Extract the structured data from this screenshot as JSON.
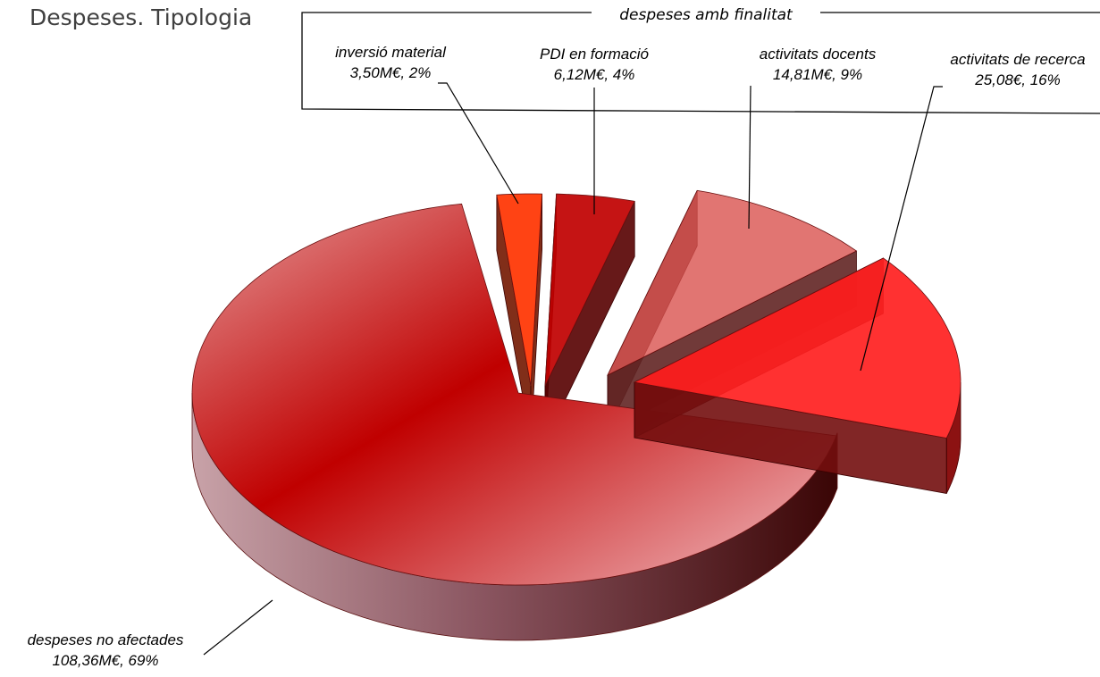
{
  "chart_data": {
    "type": "pie",
    "title": "Despeses. Tipologia",
    "group_label": "despeses amb finalitat",
    "slices": [
      {
        "name": "despeses no afectades",
        "value": 108.36,
        "value_label": "108,36M€, 69%",
        "percent": 69,
        "color": "#c00000",
        "exploded": false
      },
      {
        "name": "inversió material",
        "value": 3.5,
        "value_label": "3,50M€, 2%",
        "percent": 2,
        "color": "#ff3300",
        "exploded": true
      },
      {
        "name": "PDI en formació",
        "value": 6.12,
        "value_label": "6,12M€, 4%",
        "percent": 4,
        "color": "#c00000",
        "exploded": true
      },
      {
        "name": "activitats docents",
        "value": 14.81,
        "value_label": "14,81M€, 9%",
        "percent": 9,
        "color": "#d9534f",
        "exploded": true
      },
      {
        "name": "activitats de recerca",
        "value": 25.08,
        "value_label": "25,08€, 16%",
        "percent": 16,
        "color": "#ff2020",
        "exploded": true
      }
    ]
  }
}
